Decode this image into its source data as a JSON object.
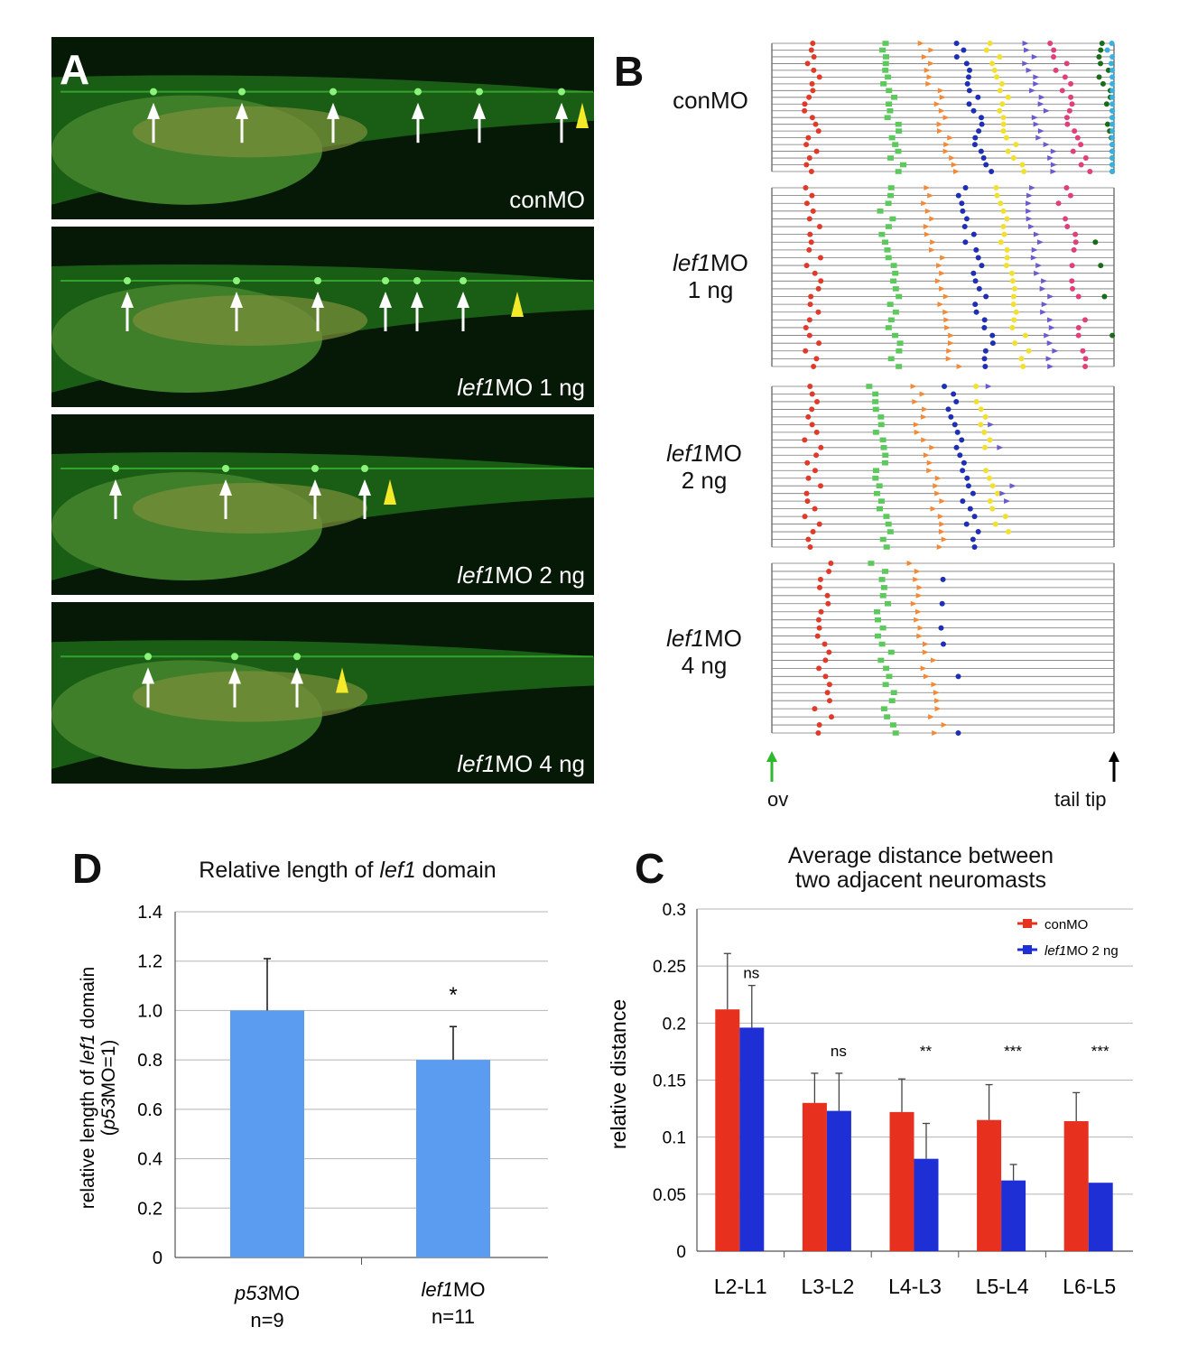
{
  "panel_a": {
    "letter": "A",
    "panels": [
      {
        "label_italic": "",
        "label_rest": "conMO",
        "arrows_x": [
          170,
          268,
          369,
          463,
          531,
          622
        ],
        "arrowhead_x": 645
      },
      {
        "label_italic": "lef1",
        "label_rest": "MO 1 ng",
        "arrows_x": [
          141,
          262,
          352,
          427,
          462,
          513
        ],
        "arrowhead_x": 573
      },
      {
        "label_italic": "lef1",
        "label_rest": "MO 2 ng",
        "arrows_x": [
          128,
          250,
          349,
          404
        ],
        "arrowhead_x": 432
      },
      {
        "label_italic": "lef1",
        "label_rest": "MO 4 ng",
        "arrows_x": [
          164,
          260,
          329
        ],
        "arrowhead_x": 379
      }
    ]
  },
  "panel_b": {
    "letter": "B",
    "groups": [
      {
        "label_italic": "",
        "label_line1": "conMO",
        "label_line2": ""
      },
      {
        "label_italic": "lef1",
        "label_line1": "MO",
        "label_line2": "1 ng"
      },
      {
        "label_italic": "lef1",
        "label_line1": "MO",
        "label_line2": "2 ng"
      },
      {
        "label_italic": "lef1",
        "label_line1": "MO",
        "label_line2": "4 ng"
      }
    ],
    "start_label": "ov",
    "end_label": "tail tip",
    "start_arrow_color": "#2db82d",
    "end_arrow_color": "#000000",
    "marker_colors": [
      "#e03a2a",
      "#5cc95c",
      "#f08a3a",
      "#1f2fb5",
      "#f2e030",
      "#6a5acd",
      "#e0407a",
      "#1a6b1a",
      "#3ab0e0"
    ]
  },
  "chart_d": {
    "letter": "D",
    "title_pre": "Relative length of ",
    "title_italic": "lef1",
    "title_post": " domain",
    "ylabel_line1_pre": "relative length of ",
    "ylabel_line1_italic": "lef1",
    "ylabel_line1_post": " domain",
    "ylabel_line2_pre": "(",
    "ylabel_line2_italic": "p53",
    "ylabel_line2_post": "MO=1)",
    "yticks": [
      "1.4",
      "1.2",
      "1.0",
      "0.8",
      "0.6",
      "0.4",
      "0.2",
      "0"
    ],
    "significance": "*",
    "cat1_italic": "p53",
    "cat1_rest": "MO",
    "cat1_n": "n=9",
    "cat2_italic": "lef1",
    "cat2_rest": "MO",
    "cat2_n": "n=11"
  },
  "chart_c": {
    "letter": "C",
    "title_line1": "Average distance between",
    "title_line2": "two adjacent neuromasts",
    "ylabel": "relative distance",
    "yticks": [
      "0.3",
      "0.25",
      "0.2",
      "0.15",
      "0.1",
      "0.05",
      "0"
    ],
    "legend_conmo": "conMO",
    "legend_lef1_italic": "lef1",
    "legend_lef1_rest": "MO 2 ng"
  },
  "chart_data": [
    {
      "type": "bar",
      "title": "Relative length of lef1 domain",
      "ylabel": "relative length of lef1 domain (p53MO=1)",
      "categories": [
        "p53MO n=9",
        "lef1MO n=11"
      ],
      "values": [
        1.0,
        0.8
      ],
      "errors": [
        0.21,
        0.135
      ],
      "ylim": [
        0,
        1.4
      ],
      "grid": true,
      "color": "#5b9bf0"
    },
    {
      "type": "bar",
      "title": "Average distance between two adjacent neuromasts",
      "ylabel": "relative distance",
      "categories": [
        "L2-L1",
        "L3-L2",
        "L4-L3",
        "L5-L4",
        "L6-L5"
      ],
      "series": [
        {
          "name": "conMO",
          "color": "#e8301e",
          "values": [
            0.212,
            0.13,
            0.122,
            0.115,
            0.114
          ],
          "errors": [
            0.049,
            0.026,
            0.029,
            0.031,
            0.025
          ]
        },
        {
          "name": "lef1MO 2 ng",
          "color": "#1f2fd6",
          "values": [
            0.196,
            0.123,
            0.081,
            0.062,
            0.06
          ],
          "errors": [
            0.037,
            0.033,
            0.031,
            0.014,
            0.0
          ]
        }
      ],
      "significance": [
        "ns",
        "ns",
        "**",
        "***",
        "***"
      ],
      "ylim": [
        0,
        0.3
      ],
      "grid": true,
      "legend": "top-right"
    }
  ]
}
